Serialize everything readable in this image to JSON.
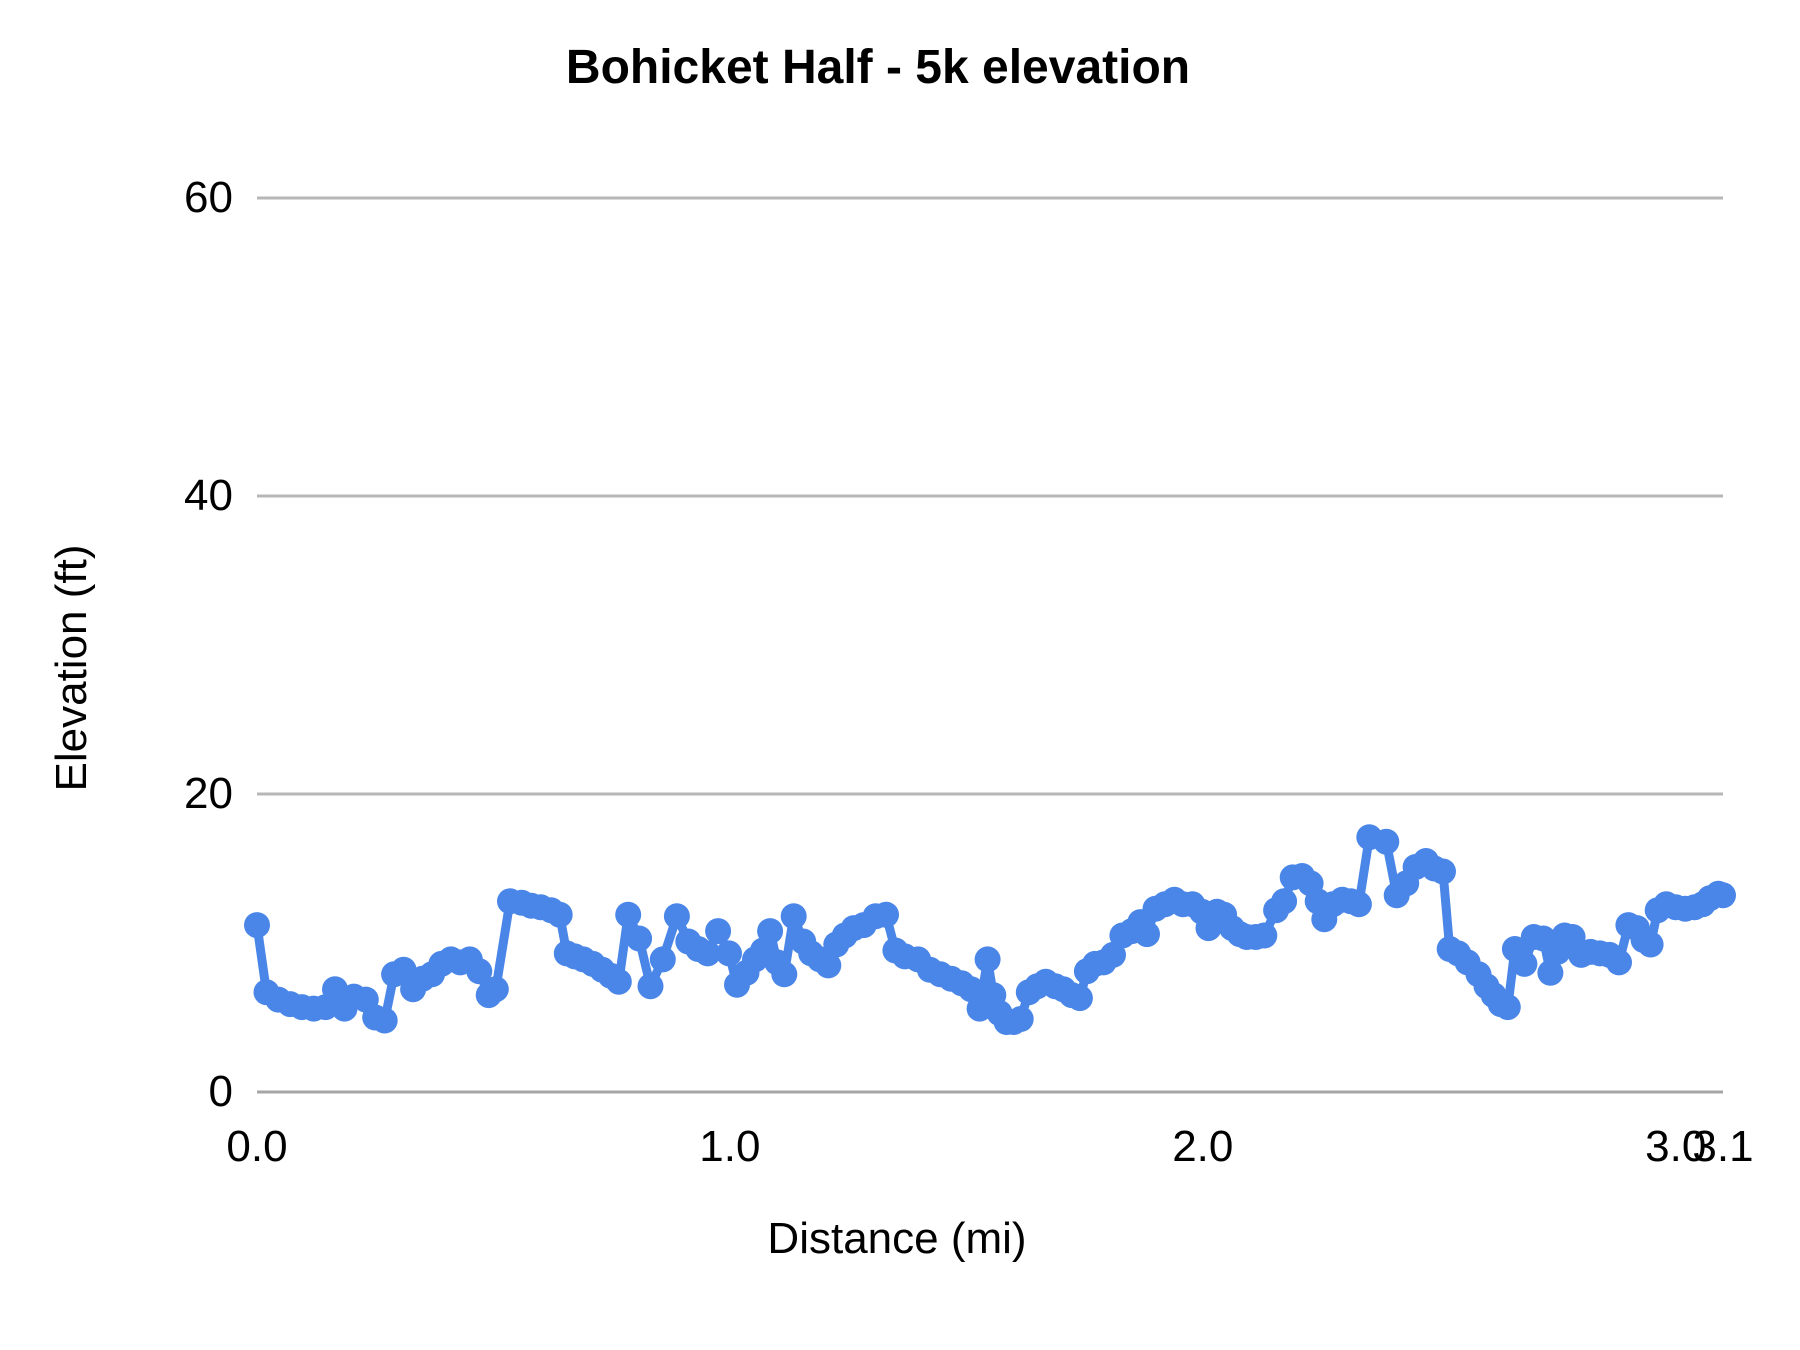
{
  "page": {
    "background": "#ffffff"
  },
  "chart_data": {
    "type": "line",
    "title": "Bohicket Half - 5k elevation",
    "xlabel": "Distance (mi)",
    "ylabel": "Elevation (ft)",
    "xlim": [
      0,
      3.1
    ],
    "ylim": [
      0,
      60
    ],
    "grid": "horizontal-only",
    "legend": "none",
    "marker": "circle",
    "series_color": "#4a86e8",
    "gridline_color": "#b7b7b7",
    "baseline_color": "#a6a6a6",
    "x_ticks": [
      {
        "value": 0,
        "label": "0.0"
      },
      {
        "value": 1,
        "label": "1.0"
      },
      {
        "value": 2,
        "label": "2.0"
      },
      {
        "value": 3,
        "label": "3.0"
      },
      {
        "value": 3.1,
        "label": "3.1"
      }
    ],
    "y_ticks": [
      {
        "value": 0,
        "label": "0"
      },
      {
        "value": 20,
        "label": "20"
      },
      {
        "value": 40,
        "label": "40"
      },
      {
        "value": 60,
        "label": "60"
      }
    ],
    "points": [
      [
        0.0,
        11.2
      ],
      [
        0.02,
        6.7
      ],
      [
        0.045,
        6.2
      ],
      [
        0.07,
        5.9
      ],
      [
        0.095,
        5.7
      ],
      [
        0.12,
        5.6
      ],
      [
        0.145,
        5.7
      ],
      [
        0.165,
        6.9
      ],
      [
        0.185,
        5.6
      ],
      [
        0.205,
        6.4
      ],
      [
        0.23,
        6.2
      ],
      [
        0.25,
        5.0
      ],
      [
        0.27,
        4.8
      ],
      [
        0.29,
        7.9
      ],
      [
        0.31,
        8.2
      ],
      [
        0.33,
        6.9
      ],
      [
        0.35,
        7.6
      ],
      [
        0.37,
        7.9
      ],
      [
        0.39,
        8.6
      ],
      [
        0.41,
        8.9
      ],
      [
        0.43,
        8.7
      ],
      [
        0.45,
        8.9
      ],
      [
        0.47,
        8.1
      ],
      [
        0.49,
        6.5
      ],
      [
        0.505,
        6.9
      ],
      [
        0.535,
        12.8
      ],
      [
        0.56,
        12.7
      ],
      [
        0.58,
        12.5
      ],
      [
        0.6,
        12.4
      ],
      [
        0.622,
        12.2
      ],
      [
        0.64,
        11.9
      ],
      [
        0.655,
        9.3
      ],
      [
        0.672,
        9.1
      ],
      [
        0.69,
        8.9
      ],
      [
        0.71,
        8.6
      ],
      [
        0.73,
        8.2
      ],
      [
        0.748,
        7.8
      ],
      [
        0.765,
        7.4
      ],
      [
        0.785,
        11.9
      ],
      [
        0.808,
        10.3
      ],
      [
        0.832,
        7.1
      ],
      [
        0.858,
        8.9
      ],
      [
        0.888,
        11.8
      ],
      [
        0.912,
        10.1
      ],
      [
        0.933,
        9.6
      ],
      [
        0.953,
        9.3
      ],
      [
        0.975,
        10.8
      ],
      [
        0.998,
        9.3
      ],
      [
        1.015,
        7.2
      ],
      [
        1.035,
        8.0
      ],
      [
        1.053,
        8.9
      ],
      [
        1.07,
        9.5
      ],
      [
        1.085,
        10.8
      ],
      [
        1.1,
        8.7
      ],
      [
        1.115,
        7.9
      ],
      [
        1.135,
        11.8
      ],
      [
        1.155,
        10.1
      ],
      [
        1.172,
        9.3
      ],
      [
        1.19,
        8.9
      ],
      [
        1.208,
        8.5
      ],
      [
        1.225,
        9.9
      ],
      [
        1.243,
        10.5
      ],
      [
        1.262,
        11.0
      ],
      [
        1.283,
        11.2
      ],
      [
        1.308,
        11.8
      ],
      [
        1.33,
        11.9
      ],
      [
        1.35,
        9.5
      ],
      [
        1.37,
        9.1
      ],
      [
        1.398,
        8.9
      ],
      [
        1.423,
        8.2
      ],
      [
        1.445,
        7.9
      ],
      [
        1.468,
        7.6
      ],
      [
        1.49,
        7.3
      ],
      [
        1.51,
        6.9
      ],
      [
        1.528,
        5.6
      ],
      [
        1.545,
        8.9
      ],
      [
        1.557,
        6.5
      ],
      [
        1.57,
        5.3
      ],
      [
        1.585,
        4.7
      ],
      [
        1.6,
        4.7
      ],
      [
        1.615,
        4.9
      ],
      [
        1.632,
        6.7
      ],
      [
        1.65,
        7.1
      ],
      [
        1.668,
        7.4
      ],
      [
        1.688,
        7.1
      ],
      [
        1.705,
        6.9
      ],
      [
        1.723,
        6.5
      ],
      [
        1.74,
        6.3
      ],
      [
        1.755,
        8.1
      ],
      [
        1.772,
        8.6
      ],
      [
        1.79,
        8.7
      ],
      [
        1.81,
        9.2
      ],
      [
        1.83,
        10.5
      ],
      [
        1.85,
        10.8
      ],
      [
        1.868,
        11.4
      ],
      [
        1.882,
        10.6
      ],
      [
        1.9,
        12.3
      ],
      [
        1.92,
        12.6
      ],
      [
        1.94,
        12.9
      ],
      [
        1.958,
        12.6
      ],
      [
        1.978,
        12.6
      ],
      [
        1.998,
        12.1
      ],
      [
        2.012,
        11.0
      ],
      [
        2.03,
        12.1
      ],
      [
        2.045,
        11.9
      ],
      [
        2.062,
        11.0
      ],
      [
        2.078,
        10.6
      ],
      [
        2.093,
        10.4
      ],
      [
        2.112,
        10.4
      ],
      [
        2.13,
        10.5
      ],
      [
        2.155,
        12.2
      ],
      [
        2.172,
        12.8
      ],
      [
        2.19,
        14.4
      ],
      [
        2.21,
        14.5
      ],
      [
        2.228,
        14.0
      ],
      [
        2.243,
        12.8
      ],
      [
        2.257,
        11.6
      ],
      [
        2.275,
        12.6
      ],
      [
        2.295,
        12.9
      ],
      [
        2.313,
        12.8
      ],
      [
        2.33,
        12.6
      ],
      [
        2.352,
        17.1
      ],
      [
        2.388,
        16.8
      ],
      [
        2.41,
        13.2
      ],
      [
        2.43,
        14.0
      ],
      [
        2.45,
        15.1
      ],
      [
        2.472,
        15.5
      ],
      [
        2.49,
        15.0
      ],
      [
        2.508,
        14.8
      ],
      [
        2.522,
        9.6
      ],
      [
        2.54,
        9.3
      ],
      [
        2.56,
        8.7
      ],
      [
        2.583,
        7.9
      ],
      [
        2.6,
        7.1
      ],
      [
        2.615,
        6.5
      ],
      [
        2.63,
        5.9
      ],
      [
        2.645,
        5.7
      ],
      [
        2.66,
        9.6
      ],
      [
        2.68,
        8.6
      ],
      [
        2.7,
        10.4
      ],
      [
        2.72,
        10.3
      ],
      [
        2.735,
        8.0
      ],
      [
        2.75,
        9.4
      ],
      [
        2.765,
        10.5
      ],
      [
        2.782,
        10.4
      ],
      [
        2.8,
        9.2
      ],
      [
        2.82,
        9.4
      ],
      [
        2.84,
        9.3
      ],
      [
        2.86,
        9.2
      ],
      [
        2.88,
        8.7
      ],
      [
        2.9,
        11.2
      ],
      [
        2.918,
        11.0
      ],
      [
        2.932,
        10.2
      ],
      [
        2.947,
        9.9
      ],
      [
        2.962,
        12.2
      ],
      [
        2.98,
        12.6
      ],
      [
        3.0,
        12.4
      ],
      [
        3.02,
        12.3
      ],
      [
        3.04,
        12.4
      ],
      [
        3.057,
        12.6
      ],
      [
        3.072,
        13.0
      ],
      [
        3.09,
        13.3
      ],
      [
        3.1,
        13.2
      ]
    ]
  }
}
